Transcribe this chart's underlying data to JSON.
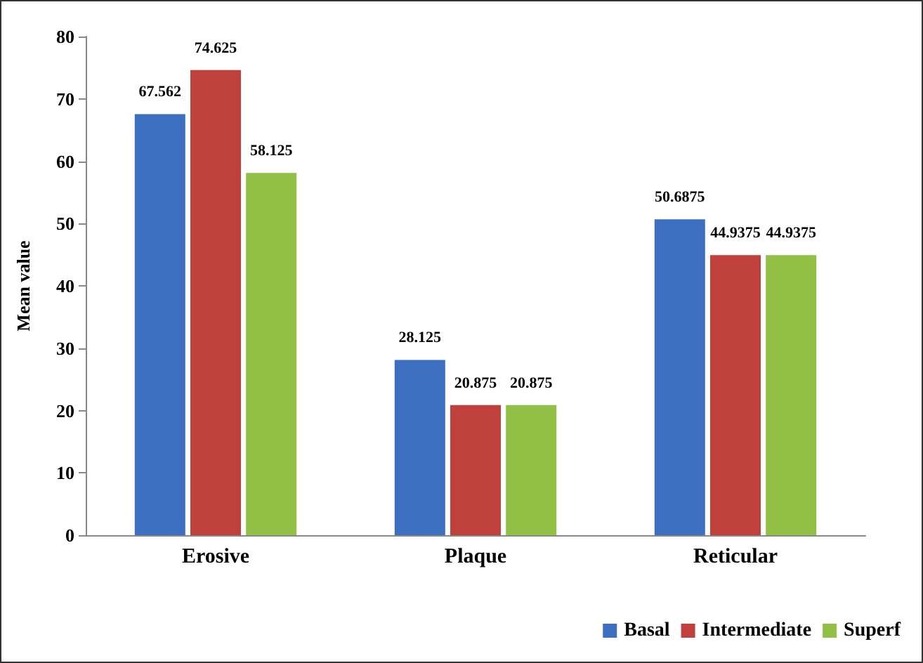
{
  "chart_data": {
    "type": "bar",
    "ylabel": "Mean value",
    "categories": [
      "Erosive",
      "Plaque",
      "Reticular"
    ],
    "series": [
      {
        "name": "Basal",
        "color": "#3d6fc0",
        "values": [
          67.562,
          28.125,
          50.6875
        ]
      },
      {
        "name": "Intermediate",
        "color": "#c0403c",
        "values": [
          74.625,
          20.875,
          44.9375
        ]
      },
      {
        "name": "Superf",
        "color": "#92c047",
        "values": [
          58.125,
          20.875,
          44.9375
        ]
      }
    ],
    "ylim": [
      0,
      80
    ],
    "yticks": [
      0,
      10,
      20,
      30,
      40,
      50,
      60,
      70,
      80
    ],
    "data_labels": true,
    "legend": "bottom right",
    "grid": false
  }
}
